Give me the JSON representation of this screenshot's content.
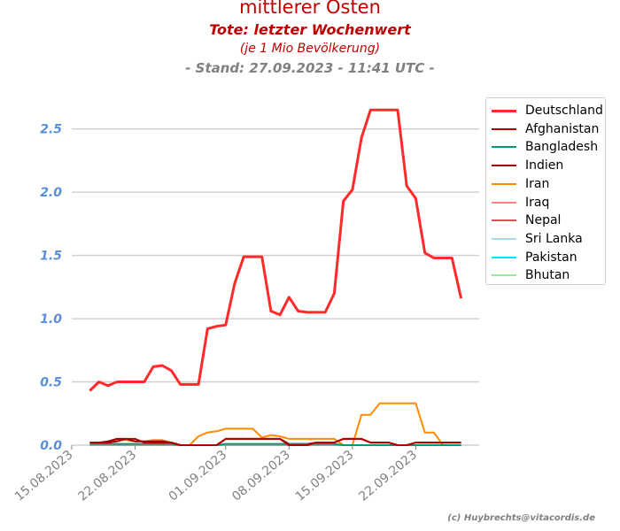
{
  "chart_data": {
    "type": "line",
    "title": "mittlerer Osten",
    "subtitle": "Tote: letzter Wochenwert",
    "subtitle2": "(je 1 Mio Bevölkerung)",
    "stand": "- Stand: 27.09.2023 - 11:41 UTC -",
    "credit": "(c) Huybrechts@vitacordis.de",
    "xlabel": "",
    "ylabel": "",
    "ylim": [
      0,
      2.75
    ],
    "xlim": [
      "2023-08-15",
      "2023-09-29"
    ],
    "grid": true,
    "legend_position": "top-right",
    "y_ticks": [
      {
        "value": 0,
        "label": "0.0"
      },
      {
        "value": 0.5,
        "label": "0.5"
      },
      {
        "value": 1.0,
        "label": "1.0"
      },
      {
        "value": 1.5,
        "label": "1.5"
      },
      {
        "value": 2.0,
        "label": "2.0"
      },
      {
        "value": 2.5,
        "label": "2.5"
      }
    ],
    "x_ticks": [
      {
        "date": "2023-08-15",
        "label": "15.08.2023"
      },
      {
        "date": "2023-08-22",
        "label": "22.08.2023"
      },
      {
        "date": "2023-09-01",
        "label": "01.09.2023"
      },
      {
        "date": "2023-09-08",
        "label": "08.09.2023"
      },
      {
        "date": "2023-09-15",
        "label": "15.09.2023"
      },
      {
        "date": "2023-09-22",
        "label": "22.09.2023"
      }
    ],
    "x": [
      "2023-08-17",
      "2023-08-18",
      "2023-08-19",
      "2023-08-20",
      "2023-08-21",
      "2023-08-22",
      "2023-08-23",
      "2023-08-24",
      "2023-08-25",
      "2023-08-26",
      "2023-08-27",
      "2023-08-28",
      "2023-08-29",
      "2023-08-30",
      "2023-08-31",
      "2023-09-01",
      "2023-09-02",
      "2023-09-03",
      "2023-09-04",
      "2023-09-05",
      "2023-09-06",
      "2023-09-07",
      "2023-09-08",
      "2023-09-09",
      "2023-09-10",
      "2023-09-11",
      "2023-09-12",
      "2023-09-13",
      "2023-09-14",
      "2023-09-15",
      "2023-09-16",
      "2023-09-17",
      "2023-09-18",
      "2023-09-19",
      "2023-09-20",
      "2023-09-21",
      "2023-09-22",
      "2023-09-23",
      "2023-09-24",
      "2023-09-25",
      "2023-09-26",
      "2023-09-27"
    ],
    "series": [
      {
        "name": "Deutschland",
        "color": "#ff2a2a",
        "width": 3,
        "values": [
          0.43,
          0.5,
          0.47,
          0.5,
          0.5,
          0.5,
          0.5,
          0.62,
          0.63,
          0.59,
          0.48,
          0.48,
          0.48,
          0.92,
          0.94,
          0.95,
          1.28,
          1.49,
          1.49,
          1.49,
          1.06,
          1.03,
          1.17,
          1.06,
          1.05,
          1.05,
          1.05,
          1.2,
          1.93,
          2.02,
          2.43,
          2.65,
          2.65,
          2.65,
          2.65,
          2.05,
          1.95,
          1.52,
          1.48,
          1.48,
          1.48,
          1.16
        ]
      },
      {
        "name": "Afghanistan",
        "color": "#b00000",
        "width": 2,
        "values": [
          0.02,
          0.02,
          0.02,
          0.03,
          0.05,
          0.05,
          0.02,
          0.02,
          0.02,
          0.02,
          0.0,
          0.0,
          0.0,
          0.0,
          0.0,
          0.05,
          0.05,
          0.05,
          0.05,
          0.05,
          0.05,
          0.05,
          0.0,
          0.0,
          0.0,
          0.02,
          0.02,
          0.02,
          0.05,
          0.05,
          0.05,
          0.02,
          0.02,
          0.02,
          0.0,
          0.0,
          0.02,
          0.02,
          0.02,
          0.02,
          0.02,
          0.02
        ]
      },
      {
        "name": "Bangladesh",
        "color": "#009977",
        "width": 2,
        "values": [
          0.01,
          0.01,
          0.01,
          0.01,
          0.01,
          0.01,
          0.01,
          0.01,
          0.01,
          0.01,
          0.0,
          0.0,
          0.0,
          0.0,
          0.0,
          0.01,
          0.01,
          0.01,
          0.01,
          0.01,
          0.01,
          0.01,
          0.01,
          0.01,
          0.01,
          0.01,
          0.01,
          0.01,
          0.0,
          0.0,
          0.0,
          0.0,
          0.0,
          0.0,
          0.0,
          0.0,
          0.0,
          0.0,
          0.0,
          0.0,
          0.0,
          0.0
        ]
      },
      {
        "name": "Indien",
        "color": "#990000",
        "width": 2,
        "values": [
          0.02,
          0.02,
          0.03,
          0.05,
          0.05,
          0.03,
          0.03,
          0.03,
          0.03,
          0.02,
          0.0,
          0.0,
          0.0,
          0.0,
          0.0,
          0.05,
          0.05,
          0.05,
          0.05,
          0.05,
          0.05,
          0.05,
          0.01,
          0.01,
          0.01,
          0.02,
          0.02,
          0.02,
          0.05,
          0.05,
          0.05,
          0.02,
          0.02,
          0.02,
          0.0,
          0.0,
          0.02,
          0.02,
          0.02,
          0.02,
          0.02,
          0.02
        ]
      },
      {
        "name": "Iran",
        "color": "#ff8c00",
        "width": 2,
        "values": [
          0.01,
          0.01,
          0.02,
          0.04,
          0.04,
          0.03,
          0.03,
          0.04,
          0.04,
          0.02,
          0.0,
          0.0,
          0.07,
          0.1,
          0.11,
          0.13,
          0.13,
          0.13,
          0.13,
          0.06,
          0.08,
          0.07,
          0.05,
          0.05,
          0.05,
          0.05,
          0.05,
          0.05,
          0.0,
          0.0,
          0.24,
          0.24,
          0.33,
          0.33,
          0.33,
          0.33,
          0.33,
          0.1,
          0.1,
          0.0,
          0.0,
          0.0
        ]
      },
      {
        "name": "Iraq",
        "color": "#ff8080",
        "width": 2,
        "values": [
          0.0,
          0.0,
          0.0,
          0.0,
          0.0,
          0.0,
          0.0,
          0.0,
          0.0,
          0.0,
          0.0,
          0.0,
          0.0,
          0.0,
          0.0,
          0.0,
          0.0,
          0.0,
          0.0,
          0.0,
          0.0,
          0.0,
          0.0,
          0.0,
          0.0,
          0.0,
          0.0,
          0.0,
          0.0,
          0.0,
          0.0,
          0.0,
          0.0,
          0.0,
          0.0,
          0.0,
          0.0,
          0.0,
          0.0,
          0.0,
          0.0,
          0.0
        ]
      },
      {
        "name": "Nepal",
        "color": "#e05050",
        "width": 2,
        "values": [
          0.0,
          0.0,
          0.0,
          0.0,
          0.0,
          0.0,
          0.0,
          0.0,
          0.0,
          0.0,
          0.0,
          0.0,
          0.0,
          0.0,
          0.0,
          0.0,
          0.0,
          0.0,
          0.0,
          0.0,
          0.0,
          0.0,
          0.0,
          0.0,
          0.0,
          0.0,
          0.0,
          0.0,
          0.0,
          0.0,
          0.0,
          0.0,
          0.0,
          0.0,
          0.0,
          0.0,
          0.0,
          0.0,
          0.0,
          0.0,
          0.0,
          0.0
        ]
      },
      {
        "name": "Sri Lanka",
        "color": "#a8d8f0",
        "width": 2,
        "values": [
          0.0,
          0.0,
          0.0,
          0.0,
          0.0,
          0.0,
          0.0,
          0.0,
          0.0,
          0.0,
          0.0,
          0.0,
          0.0,
          0.0,
          0.0,
          0.0,
          0.0,
          0.0,
          0.0,
          0.0,
          0.0,
          0.0,
          0.0,
          0.0,
          0.0,
          0.0,
          0.0,
          0.0,
          0.0,
          0.0,
          0.0,
          0.0,
          0.0,
          0.0,
          0.0,
          0.0,
          0.0,
          0.0,
          0.0,
          0.0,
          0.0,
          0.0
        ]
      },
      {
        "name": "Pakistan",
        "color": "#00e5ff",
        "width": 2,
        "values": [
          0.0,
          0.0,
          0.0,
          0.0,
          0.0,
          0.0,
          0.0,
          0.0,
          0.0,
          0.0,
          0.0,
          0.0,
          0.0,
          0.0,
          0.0,
          0.0,
          0.0,
          0.0,
          0.0,
          0.0,
          0.0,
          0.0,
          0.0,
          0.0,
          0.0,
          0.0,
          0.0,
          0.0,
          0.0,
          0.0,
          0.0,
          0.0,
          0.0,
          0.0,
          0.0,
          0.0,
          0.0,
          0.0,
          0.0,
          0.0,
          0.0,
          0.0
        ]
      },
      {
        "name": "Bhutan",
        "color": "#90ee90",
        "width": 2,
        "values": [
          0.0,
          0.0,
          0.0,
          0.0,
          0.0,
          0.0,
          0.0,
          0.0,
          0.0,
          0.0,
          0.0,
          0.0,
          0.0,
          0.0,
          0.0,
          0.0,
          0.0,
          0.0,
          0.0,
          0.0,
          0.0,
          0.0,
          0.0,
          0.0,
          0.0,
          0.0,
          0.0,
          0.0,
          0.0,
          0.0,
          0.0,
          0.0,
          0.0,
          0.0,
          0.0,
          0.0,
          0.0,
          0.0,
          0.0,
          0.0,
          0.0,
          0.0
        ]
      }
    ],
    "colors": {
      "title": "#c00000",
      "stand": "#808080",
      "ytick": "#5b8fd9",
      "xtick": "#808080",
      "grid": "#d0d0d0"
    }
  }
}
